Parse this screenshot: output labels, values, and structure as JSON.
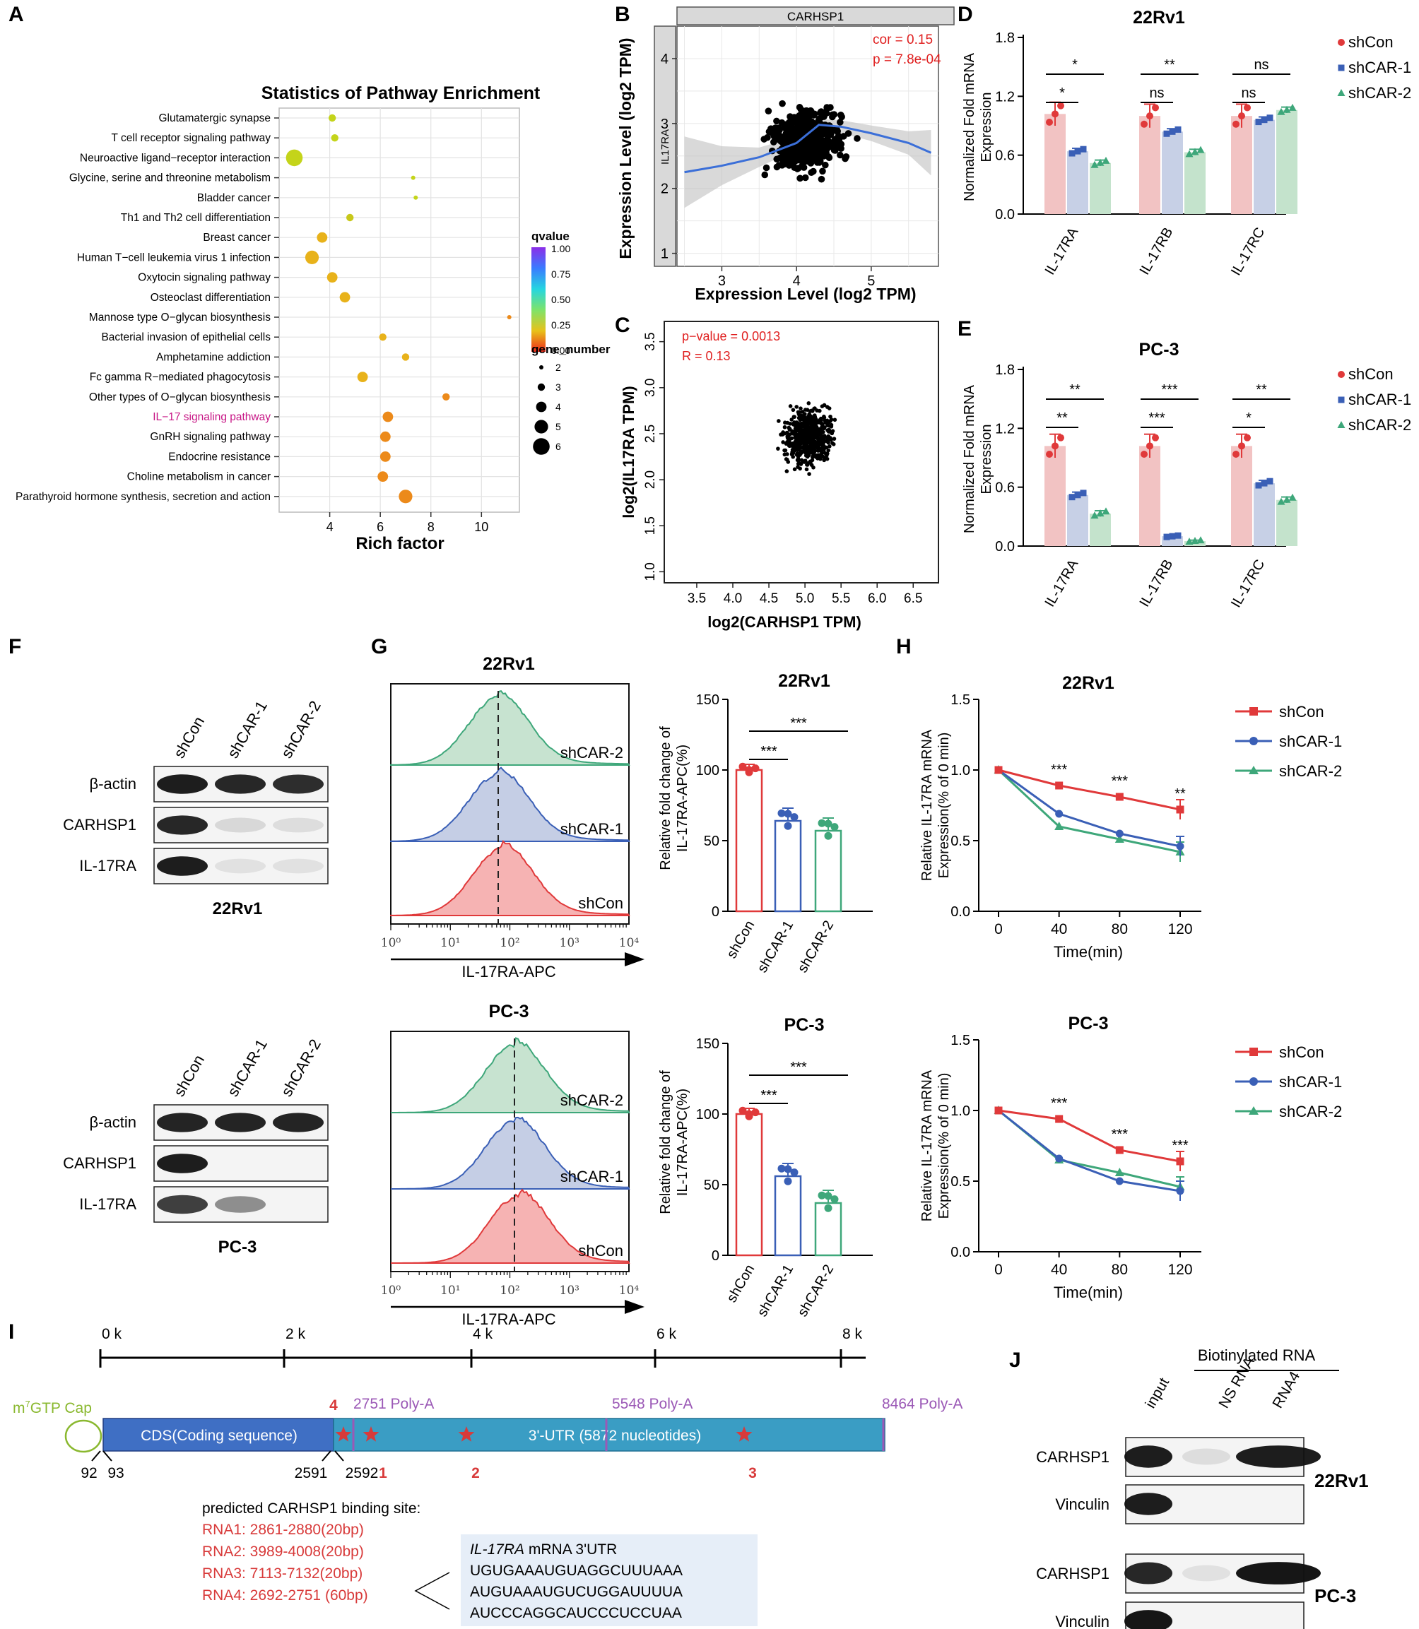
{
  "panel_labels": {
    "a": "A",
    "b": "B",
    "c": "C",
    "d": "D",
    "e": "E",
    "f": "F",
    "g": "G",
    "h": "H",
    "i": "I",
    "j": "J"
  },
  "panelA": {
    "chart_type": "bubble",
    "title": "Statistics of Pathway Enrichment",
    "xlabel": "Rich factor",
    "xticks": [
      "4",
      "6",
      "8",
      "10"
    ],
    "legend_q_title": "qvalue",
    "legend_q_ticks": [
      "1.00",
      "0.75",
      "0.50",
      "0.25",
      "0.00"
    ],
    "legend_g_title": "gene_number",
    "legend_g_ticks": [
      "2",
      "3",
      "4",
      "5",
      "6"
    ],
    "highlight_color": "#c71585",
    "pathways": [
      {
        "name": "Glutamatergic synapse",
        "rich": 4.1,
        "genes": 3,
        "q": 0.55
      },
      {
        "name": "T cell receptor signaling pathway",
        "rich": 4.2,
        "genes": 3,
        "q": 0.55
      },
      {
        "name": "Neuroactive ligand−receptor interaction",
        "rich": 2.6,
        "genes": 6,
        "q": 0.5
      },
      {
        "name": "Glycine, serine and threonine metabolism",
        "rich": 7.3,
        "genes": 2,
        "q": 0.55
      },
      {
        "name": "Bladder cancer",
        "rich": 7.4,
        "genes": 2,
        "q": 0.55
      },
      {
        "name": "Th1 and Th2 cell differentiation",
        "rich": 4.8,
        "genes": 3,
        "q": 0.45
      },
      {
        "name": "Breast cancer",
        "rich": 3.7,
        "genes": 4,
        "q": 0.3
      },
      {
        "name": "Human T−cell leukemia virus 1 infection",
        "rich": 3.3,
        "genes": 5,
        "q": 0.3
      },
      {
        "name": "Oxytocin signaling pathway",
        "rich": 4.1,
        "genes": 4,
        "q": 0.3
      },
      {
        "name": "Osteoclast differentiation",
        "rich": 4.6,
        "genes": 4,
        "q": 0.3
      },
      {
        "name": "Mannose type O−glycan biosynthesis",
        "rich": 11.1,
        "genes": 2,
        "q": 0.2
      },
      {
        "name": "Bacterial invasion of epithelial cells",
        "rich": 6.1,
        "genes": 3,
        "q": 0.3
      },
      {
        "name": "Amphetamine addiction",
        "rich": 7.0,
        "genes": 3,
        "q": 0.25
      },
      {
        "name": "Fc gamma R−mediated phagocytosis",
        "rich": 5.3,
        "genes": 4,
        "q": 0.25
      },
      {
        "name": "Other types of O−glycan biosynthesis",
        "rich": 8.6,
        "genes": 3,
        "q": 0.2
      },
      {
        "name": "IL−17 signaling pathway",
        "rich": 6.3,
        "genes": 4,
        "q": 0.15
      },
      {
        "name": "GnRH signaling pathway",
        "rich": 6.2,
        "genes": 4,
        "q": 0.15
      },
      {
        "name": "Endocrine resistance",
        "rich": 6.2,
        "genes": 4,
        "q": 0.15
      },
      {
        "name": "Choline metabolism in cancer",
        "rich": 6.1,
        "genes": 4,
        "q": 0.15
      },
      {
        "name": "Parathyroid hormone synthesis, secretion and action",
        "rich": 7.0,
        "genes": 5,
        "q": 0.15
      }
    ]
  },
  "panelB": {
    "strip_x": "CARHSP1",
    "strip_y": "IL17RA",
    "xlabel": "Expression Level (log2 TPM)",
    "ylabel": "Expression Level (log2 TPM)",
    "xticks": [
      "3",
      "4",
      "5"
    ],
    "yticks": [
      "1",
      "2",
      "3",
      "4"
    ],
    "cor_text": "cor = 0.15",
    "p_text": "p = 7.8e-04"
  },
  "panelC": {
    "xlabel": "log2(CARHSP1 TPM)",
    "ylabel": "log2(IL17RA TPM)",
    "xticks": [
      "3.5",
      "4.0",
      "4.5",
      "5.0",
      "5.5",
      "6.0",
      "6.5"
    ],
    "yticks": [
      "1.0",
      "1.5",
      "2.0",
      "2.5",
      "3.0",
      "3.5"
    ],
    "p_text": "p−value = 0.0013",
    "r_text": "R = 0.13"
  },
  "bar_legend": {
    "shcon": "shCon",
    "shcar1": "shCAR-1",
    "shcar2": "shCAR-2"
  },
  "colors": {
    "shcon": "#e0393a",
    "shcar1": "#3a5fb6",
    "shcar2": "#3ea77a",
    "shcon_light": "#f2c3c3",
    "shcar1_light": "#c7d0e6",
    "shcar2_light": "#c4e3cc"
  },
  "panelD": {
    "title": "22Rv1",
    "ylabel1": "Normalized Fold mRNA",
    "ylabel2": "Expression",
    "yticks": [
      "0.0",
      "0.6",
      "1.2",
      "1.8"
    ],
    "categories": [
      "IL-17RA",
      "IL-17RB",
      "IL-17RC"
    ],
    "series": [
      {
        "name": "shCon",
        "values": [
          1.02,
          1.0,
          1.0
        ]
      },
      {
        "name": "shCAR-1",
        "values": [
          0.64,
          0.84,
          0.96
        ]
      },
      {
        "name": "shCAR-2",
        "values": [
          0.52,
          0.63,
          1.06
        ]
      }
    ],
    "sig": {
      "a_low": "*",
      "a_high": "*",
      "b_low": "ns",
      "b_high": "**",
      "c_low": "ns",
      "c_high": "ns"
    }
  },
  "panelE": {
    "title": "PC-3",
    "ylabel1": "Normalized Fold mRNA",
    "ylabel2": "Expression",
    "yticks": [
      "0.0",
      "0.6",
      "1.2",
      "1.8"
    ],
    "categories": [
      "IL-17RA",
      "IL-17RB",
      "IL-17RC"
    ],
    "series": [
      {
        "name": "shCon",
        "values": [
          1.02,
          1.02,
          1.02
        ]
      },
      {
        "name": "shCAR-1",
        "values": [
          0.52,
          0.1,
          0.64
        ]
      },
      {
        "name": "shCAR-2",
        "values": [
          0.33,
          0.05,
          0.47
        ]
      }
    ],
    "sig": {
      "a_low": "**",
      "a_high": "**",
      "b_low": "***",
      "b_high": "***",
      "c_low": "*",
      "c_high": "**"
    }
  },
  "panelF": {
    "lanes": [
      "shCon",
      "shCAR-1",
      "shCAR-2"
    ],
    "rows": [
      "β-actin",
      "CARHSP1",
      "IL-17RA"
    ],
    "top_label": "22Rv1",
    "bottom_label": "PC-3"
  },
  "panelG": {
    "title_top": "22Rv1",
    "title_bottom": "PC-3",
    "xlabel": "IL-17RA-APC",
    "xticks": [
      "10⁰",
      "10¹",
      "10²",
      "10³",
      "10⁴"
    ],
    "hist_labels": [
      "shCAR-2",
      "shCAR-1",
      "shCon"
    ],
    "bar_ylabel1": "Relative fold change of",
    "bar_ylabel2": "IL-17RA-APC(%)",
    "bar_yticks": [
      "0",
      "50",
      "100",
      "150"
    ],
    "bar_categories": [
      "shCon",
      "shCAR-1",
      "shCAR-2"
    ],
    "top_values": [
      100,
      64,
      57
    ],
    "bottom_values": [
      100,
      56,
      37
    ],
    "sig_low": "***",
    "sig_high": "***"
  },
  "panelH": {
    "title_top": "22Rv1",
    "title_bottom": "PC-3",
    "ylabel1": "Relative IL-17RA mRNA",
    "ylabel2": "Expression(% of 0 min)",
    "xlabel": "Time(min)",
    "xticks": [
      "0",
      "40",
      "80",
      "120"
    ],
    "yticks": [
      "0.0",
      "0.5",
      "1.0",
      "1.5"
    ],
    "time": [
      0,
      40,
      80,
      120
    ],
    "top_series": [
      {
        "name": "shCon",
        "values": [
          1.0,
          0.89,
          0.81,
          0.72
        ]
      },
      {
        "name": "shCAR-1",
        "values": [
          1.0,
          0.69,
          0.55,
          0.46
        ]
      },
      {
        "name": "shCAR-2",
        "values": [
          1.0,
          0.6,
          0.51,
          0.42
        ]
      }
    ],
    "bottom_series": [
      {
        "name": "shCon",
        "values": [
          1.0,
          0.94,
          0.72,
          0.64
        ]
      },
      {
        "name": "shCAR-1",
        "values": [
          1.0,
          0.66,
          0.5,
          0.43
        ]
      },
      {
        "name": "shCAR-2",
        "values": [
          1.0,
          0.65,
          0.56,
          0.46
        ]
      }
    ],
    "top_sig": [
      "***",
      "***",
      "**"
    ],
    "bottom_sig": [
      "***",
      "***",
      "***"
    ]
  },
  "panelI": {
    "scale": [
      "0 k",
      "2 k",
      "4 k",
      "6 k",
      "8 k"
    ],
    "cap_sup": "7",
    "cap_pre": "m",
    "cap_post": "GTP Cap",
    "cds": "CDS(Coding sequence)",
    "utr": "3'-UTR (5872 nucleotides)",
    "polya1": "2751 Poly-A",
    "polya2": "5548 Poly-A",
    "polya3": "8464 Poly-A",
    "pos92": "92",
    "pos93": "93",
    "pos2591": "2591",
    "pos2592": "2592",
    "site_nums": [
      "4",
      "1",
      "2",
      "3"
    ],
    "binding_title": "predicted CARHSP1 binding site:",
    "binding": [
      "RNA1: 2861-2880(20bp)",
      "RNA2: 3989-4008(20bp)",
      "RNA3: 7113-7132(20bp)",
      "RNA4: 2692-2751 (60bp)"
    ],
    "box_title_gene": "IL-17RA",
    "box_title_rest": " mRNA 3'UTR",
    "box_seqs": [
      "UGUGAAAUGUAGGCUUUAAA",
      "AUGUAAAUGUCUGGAUUUUA",
      "AUCCCAGGCAUCCCUCCUAA"
    ],
    "red_color": "#d83a3a",
    "purple_color": "#9b59b6"
  },
  "panelJ": {
    "header": "Biotinylated RNA",
    "lanes": [
      "input",
      "NS RNA",
      "RNA4"
    ],
    "rows": [
      "CARHSP1",
      "Vinculin",
      "CARHSP1",
      "Vinculin"
    ],
    "cell1": "22Rv1",
    "cell2": "PC-3"
  }
}
